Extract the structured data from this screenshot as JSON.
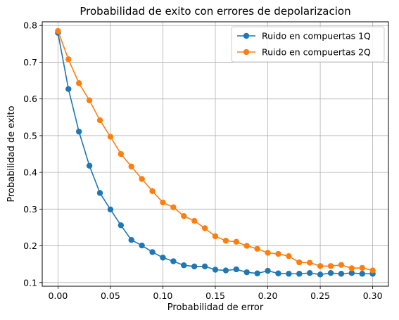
{
  "chart_data": {
    "type": "line",
    "title": "Probabilidad de exito con errores de depolarizacion",
    "xlabel": "Probabilidad de error",
    "ylabel": "Probabilidad de exito",
    "xlim": [
      -0.015,
      0.315
    ],
    "ylim": [
      0.09,
      0.81
    ],
    "xticks": [
      0.0,
      0.05,
      0.1,
      0.15,
      0.2,
      0.25,
      0.3
    ],
    "xtick_labels": [
      "0.00",
      "0.05",
      "0.10",
      "0.15",
      "0.20",
      "0.25",
      "0.30"
    ],
    "yticks": [
      0.1,
      0.2,
      0.3,
      0.4,
      0.5,
      0.6,
      0.7,
      0.8
    ],
    "ytick_labels": [
      "0.1",
      "0.2",
      "0.3",
      "0.4",
      "0.5",
      "0.6",
      "0.7",
      "0.8"
    ],
    "grid": true,
    "legend_position": "top-right",
    "x": [
      0.0,
      0.01,
      0.02,
      0.03,
      0.04,
      0.05,
      0.06,
      0.07,
      0.08,
      0.09,
      0.1,
      0.11,
      0.12,
      0.13,
      0.14,
      0.15,
      0.16,
      0.17,
      0.18,
      0.19,
      0.2,
      0.21,
      0.22,
      0.23,
      0.24,
      0.25,
      0.26,
      0.27,
      0.28,
      0.29,
      0.3
    ],
    "series": [
      {
        "name": "Ruido en compuertas 1Q",
        "color": "#1f77b4",
        "values": [
          0.78,
          0.627,
          0.511,
          0.418,
          0.344,
          0.299,
          0.256,
          0.216,
          0.201,
          0.183,
          0.168,
          0.158,
          0.147,
          0.144,
          0.144,
          0.135,
          0.133,
          0.136,
          0.128,
          0.125,
          0.132,
          0.125,
          0.124,
          0.124,
          0.126,
          0.122,
          0.126,
          0.124,
          0.126,
          0.124,
          0.124
        ]
      },
      {
        "name": "Ruido en compuertas 2Q",
        "color": "#ff7f0e",
        "values": [
          0.785,
          0.708,
          0.643,
          0.596,
          0.542,
          0.497,
          0.45,
          0.416,
          0.382,
          0.349,
          0.318,
          0.305,
          0.281,
          0.268,
          0.248,
          0.226,
          0.214,
          0.211,
          0.2,
          0.192,
          0.181,
          0.178,
          0.172,
          0.155,
          0.154,
          0.145,
          0.145,
          0.148,
          0.139,
          0.14,
          0.133
        ]
      }
    ]
  }
}
